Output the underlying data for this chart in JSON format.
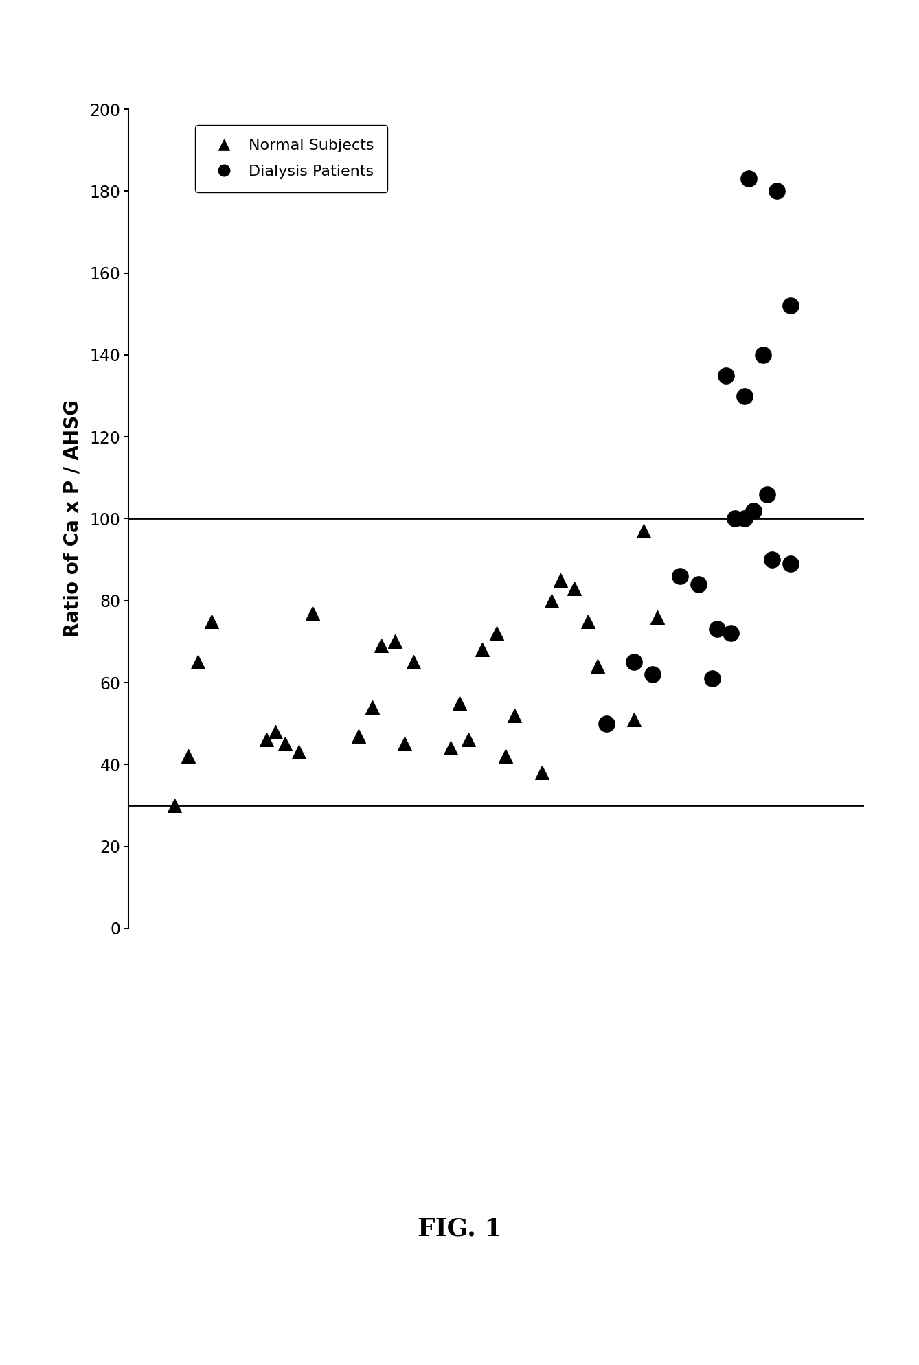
{
  "normal_subjects_x": [
    1.0,
    1.15,
    1.25,
    1.4,
    2.0,
    2.1,
    2.2,
    2.35,
    2.5,
    3.0,
    3.15,
    3.25,
    3.4,
    3.5,
    3.6,
    4.0,
    4.1,
    4.2,
    4.35,
    4.5,
    4.6,
    4.7,
    5.0,
    5.1,
    5.2,
    5.35,
    5.5,
    5.6,
    6.0,
    6.1,
    6.25
  ],
  "normal_subjects_y": [
    30,
    42,
    65,
    75,
    46,
    48,
    45,
    43,
    77,
    47,
    54,
    69,
    70,
    45,
    65,
    44,
    55,
    46,
    68,
    72,
    42,
    52,
    38,
    80,
    85,
    83,
    75,
    64,
    51,
    97,
    76
  ],
  "dialysis_patients_x": [
    5.7,
    6.0,
    6.2,
    6.5,
    6.7,
    6.9,
    7.05,
    6.85,
    7.1,
    7.3,
    7.2,
    7.45,
    7.5,
    7.7,
    7.0,
    7.2,
    7.4,
    7.7,
    7.25,
    7.55
  ],
  "dialysis_patients_y": [
    50,
    65,
    62,
    86,
    84,
    73,
    72,
    61,
    100,
    102,
    100,
    106,
    90,
    89,
    135,
    130,
    140,
    152,
    183,
    180
  ],
  "hline_y": 100,
  "hline2_y": 30,
  "ylim": [
    0,
    200
  ],
  "yticks": [
    0,
    20,
    40,
    60,
    80,
    100,
    120,
    140,
    160,
    180,
    200
  ],
  "ylabel": "Ratio of Ca x P / AHSG",
  "fig_label": "FIG. 1",
  "background_color": "#ffffff",
  "marker_color": "#000000",
  "xlim": [
    0.5,
    8.5
  ],
  "hline_xmin": 0.5,
  "hline_xmax": 8.5
}
